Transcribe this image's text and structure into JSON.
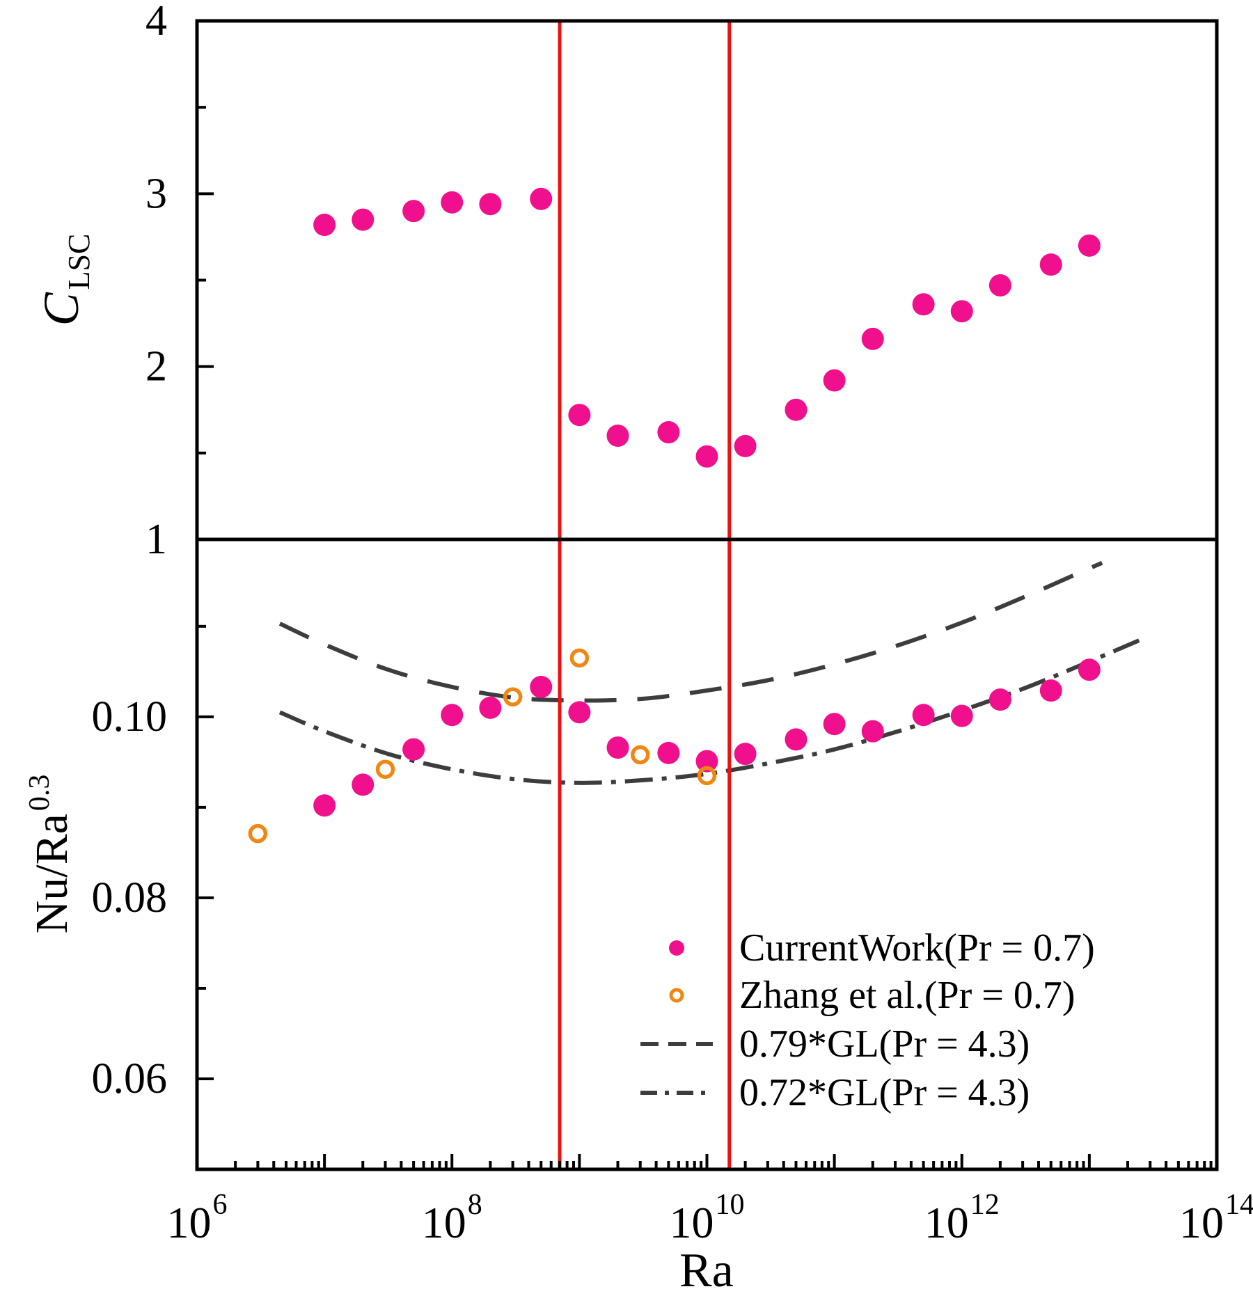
{
  "chart_data": {
    "type": "scatter",
    "x_axis": {
      "label": "Ra",
      "scale": "log",
      "min": 1000000.0,
      "max": 100000000000000.0,
      "labeled_tick_exponents": [
        6,
        8,
        10,
        12,
        14
      ],
      "tick_mantissa": "10"
    },
    "panels": [
      {
        "id": "top",
        "y_label": "C_LSC",
        "y_label_main": "C",
        "y_label_sub": "LSC",
        "y_scale": "linear",
        "y_range": [
          1,
          4
        ],
        "y_major_ticks": [
          1,
          2,
          3,
          4
        ],
        "y_major_tick_labels": [
          "1",
          "2",
          "3",
          "4"
        ],
        "y_minor_ticks": [
          1.5,
          2.5,
          3.5
        ]
      },
      {
        "id": "bottom",
        "y_label": "Nu/Ra^0.3",
        "y_label_main": "Nu/Ra",
        "y_label_sup": "0.3",
        "y_scale": "linear",
        "y_range": [
          0.05,
          0.1196
        ],
        "y_major_ticks": [
          0.06,
          0.08,
          0.1
        ],
        "y_major_tick_labels": [
          "0.06",
          "0.08",
          "0.10"
        ],
        "y_minor_ticks": [
          0.07,
          0.09,
          0.11
        ]
      }
    ],
    "red_vertical_lines": {
      "color": "#EE1111",
      "ra": [
        700000000.0,
        15000000000.0
      ]
    },
    "series": [
      {
        "id": "clsc-current-work",
        "panel": "top",
        "kind": "scatter",
        "marker": "filled-circle",
        "color": "#F00F8C",
        "label": "CurrentWork(Pr = 0.7)",
        "ra": [
          10000000.0,
          20000000.0,
          50000000.0,
          100000000.0,
          200000000.0,
          500000000.0,
          1000000000.0,
          2000000000.0,
          5000000000.0,
          10000000000.0,
          20000000000.0,
          50000000000.0,
          100000000000.0,
          200000000000.0,
          500000000000.0,
          1000000000000.0,
          2000000000000.0,
          5000000000000.0,
          10000000000000.0
        ],
        "y": [
          2.82,
          2.85,
          2.9,
          2.95,
          2.94,
          2.97,
          1.72,
          1.6,
          1.62,
          1.48,
          1.54,
          1.75,
          1.92,
          2.16,
          2.36,
          2.32,
          2.47,
          2.59,
          2.7
        ]
      },
      {
        "id": "nu-current-work",
        "panel": "bottom",
        "kind": "scatter",
        "marker": "filled-circle",
        "color": "#F00F8C",
        "label": "CurrentWork(Pr = 0.7)",
        "ra": [
          10000000.0,
          20000000.0,
          50000000.0,
          100000000.0,
          200000000.0,
          500000000.0,
          1000000000.0,
          2000000000.0,
          5000000000.0,
          10000000000.0,
          20000000000.0,
          50000000000.0,
          100000000000.0,
          200000000000.0,
          500000000000.0,
          1000000000000.0,
          2000000000000.0,
          5000000000000.0,
          10000000000000.0
        ],
        "y": [
          0.0902,
          0.0925,
          0.0964,
          0.1002,
          0.101,
          0.1033,
          0.1005,
          0.0966,
          0.096,
          0.0951,
          0.0959,
          0.0975,
          0.0992,
          0.0984,
          0.1002,
          0.1001,
          0.1019,
          0.1029,
          0.1052
        ]
      },
      {
        "id": "nu-zhang",
        "panel": "bottom",
        "kind": "scatter",
        "marker": "open-circle",
        "color": "#F08712",
        "label": "Zhang et al.(Pr = 0.7)",
        "ra": [
          3000000.0,
          30000000.0,
          300000000.0,
          1000000000.0,
          3000000000.0,
          10000000000.0
        ],
        "y": [
          0.0871,
          0.0942,
          0.1022,
          0.1065,
          0.0958,
          0.0935
        ]
      },
      {
        "id": "gl-079",
        "panel": "bottom",
        "kind": "line",
        "style": "dashed",
        "color": "#3D3D3D",
        "label": "0.79*GL(Pr = 4.3)",
        "gl_factor": 0.79,
        "log_ra": [
          6.65,
          7.0,
          7.5,
          8.0,
          8.5,
          9.0,
          9.5,
          10.0,
          10.5,
          11.0,
          11.5,
          12.0,
          12.5,
          13.0,
          13.1
        ],
        "y": [
          0.1103,
          0.108,
          0.1052,
          0.1033,
          0.1021,
          0.1018,
          0.102,
          0.1029,
          0.1041,
          0.1058,
          0.1079,
          0.1104,
          0.1133,
          0.1164,
          0.117
        ]
      },
      {
        "id": "gl-072",
        "panel": "bottom",
        "kind": "line",
        "style": "dashdot",
        "color": "#3D3D3D",
        "label": "0.72*GL(Pr = 4.3)",
        "gl_factor": 0.72,
        "log_ra": [
          6.65,
          7.0,
          7.5,
          8.0,
          8.5,
          9.0,
          9.5,
          10.0,
          10.5,
          11.0,
          11.5,
          12.0,
          12.5,
          13.0,
          13.45
        ],
        "y": [
          0.1005,
          0.0984,
          0.0959,
          0.0942,
          0.0931,
          0.0927,
          0.093,
          0.0937,
          0.0949,
          0.0964,
          0.0984,
          0.1007,
          0.1032,
          0.1061,
          0.1088
        ]
      }
    ]
  },
  "legend": {
    "entries": [
      {
        "label": "CurrentWork(Pr = 0.7)",
        "marker": "filled-circle",
        "color": "#F00F8C"
      },
      {
        "label": "Zhang et al.(Pr = 0.7)",
        "marker": "open-circle",
        "color": "#F08712"
      },
      {
        "label": "0.79*GL(Pr = 4.3)",
        "marker": "dashed-line",
        "color": "#3D3D3D"
      },
      {
        "label": "0.72*GL(Pr = 4.3)",
        "marker": "dashdot-line",
        "color": "#3D3D3D"
      }
    ]
  }
}
